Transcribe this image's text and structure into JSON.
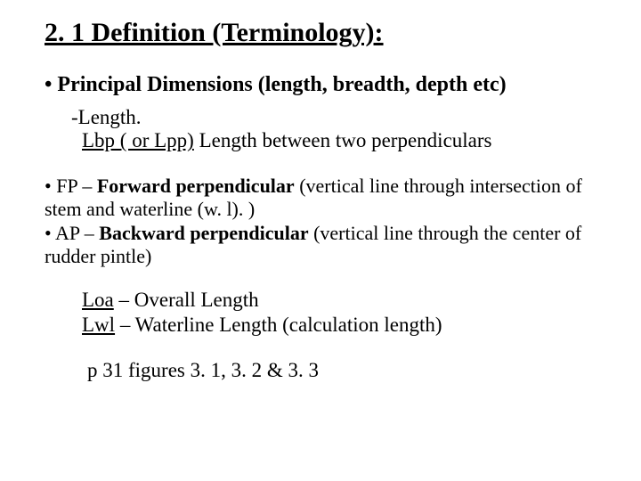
{
  "title": "2. 1 Definition (Terminology):",
  "principal": "• Principal Dimensions (length, breadth, depth etc)",
  "lengthLabel": "-Length.",
  "lbpLabel": "Lbp ( or Lpp)",
  "lbpDesc": "   Length between two perpendiculars",
  "fpBullet": "• FP – ",
  "fpBold": "Forward perpendicular",
  "fpRest": " (vertical line through intersection of stem and waterline (w. l). )",
  "apBullet": "• AP – ",
  "apBold": "Backward perpendicular",
  "apRest": " (vertical line through the center of rudder pintle)",
  "loaLabel": "Loa",
  "loaDesc": " – Overall Length",
  "lwlLabel": "Lwl",
  "lwlDesc": " – Waterline Length   (calculation length)",
  "ref": "p 31 figures 3. 1, 3. 2 & 3. 3",
  "colors": {
    "text": "#000000",
    "bg": "#ffffff"
  },
  "fontsizes": {
    "title": 30,
    "h2": 24,
    "body": 23,
    "para": 22
  }
}
